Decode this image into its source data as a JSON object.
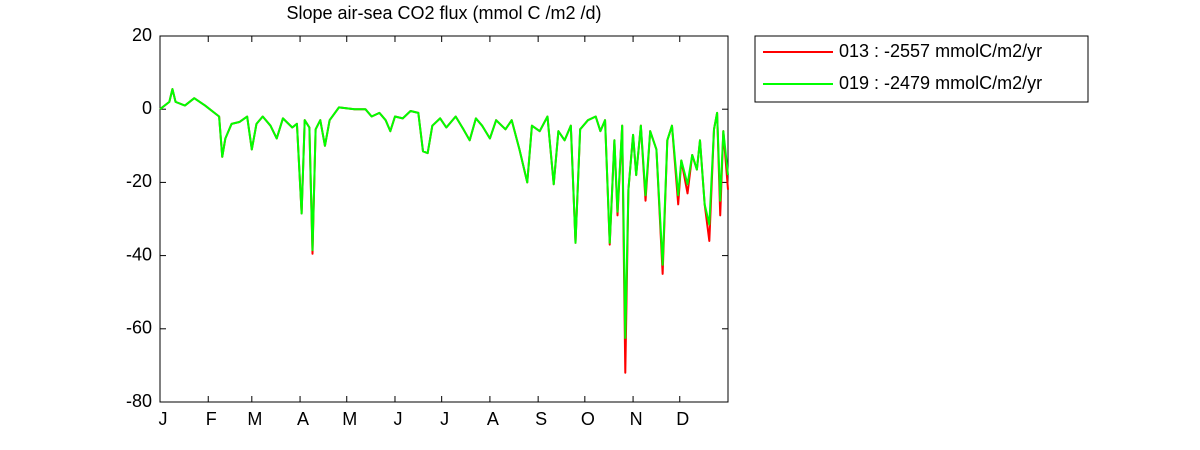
{
  "chart_data": {
    "type": "line",
    "title": "Slope  air-sea CO2 flux (mmol C /m2 /d)",
    "x": [
      1,
      7,
      9,
      11,
      17,
      23,
      30,
      36,
      39,
      41,
      43,
      47,
      52,
      57,
      60,
      63,
      67,
      72,
      76,
      80,
      86,
      89,
      92,
      94,
      97,
      99,
      101,
      104,
      107,
      110,
      116,
      126,
      133,
      137,
      142,
      146,
      149,
      152,
      157,
      162,
      167,
      170,
      173,
      176,
      181,
      185,
      191,
      196,
      200,
      204,
      208,
      213,
      217,
      223,
      227,
      232,
      237,
      240,
      245,
      250,
      254,
      257,
      261,
      265,
      268,
      271,
      276,
      281,
      284,
      287,
      290,
      293,
      295,
      298,
      300,
      302,
      305,
      307,
      310,
      313,
      316,
      320,
      324,
      327,
      330,
      334,
      336,
      340,
      343,
      346,
      348,
      351,
      354,
      357,
      359,
      361,
      363,
      366
    ],
    "series": [
      {
        "name": "013 : -2557 mmolC/m2/yr",
        "color": "#ff0000",
        "values": [
          0,
          2,
          5.5,
          2,
          1,
          3,
          1,
          -1,
          -2,
          -13,
          -8,
          -4,
          -3.5,
          -2,
          -11,
          -4,
          -2,
          -4.5,
          -8,
          -2.5,
          -5,
          -4,
          -28.5,
          -3,
          -5,
          -39.5,
          -5.5,
          -3,
          -10,
          -3,
          0.5,
          0,
          0,
          -2,
          -1,
          -3,
          -6,
          -2,
          -2.5,
          -0.5,
          -1,
          -11.5,
          -12,
          -4.5,
          -2.5,
          -5,
          -2,
          -5.5,
          -8.5,
          -2.5,
          -4.5,
          -8,
          -3,
          -5.5,
          -3,
          -11,
          -20,
          -4.5,
          -6,
          -2,
          -20.5,
          -6,
          -8.5,
          -4.5,
          -36.5,
          -5.5,
          -3,
          -2,
          -6,
          -3,
          -37,
          -8.5,
          -29,
          -4.5,
          -72,
          -22,
          -7,
          -18,
          -4.5,
          -25,
          -6,
          -11,
          -45,
          -8.5,
          -4.5,
          -26,
          -14,
          -23,
          -12.5,
          -16.5,
          -8.5,
          -26,
          -36,
          -5.5,
          -1,
          -29,
          -6,
          -22
        ]
      },
      {
        "name": "019 : -2479 mmolC/m2/yr",
        "color": "#00ff00",
        "values": [
          0,
          2,
          5.5,
          2,
          1,
          3,
          1,
          -1,
          -2,
          -13,
          -8,
          -4,
          -3.5,
          -2,
          -11,
          -4,
          -2,
          -4.5,
          -8,
          -2.5,
          -5,
          -4,
          -28.5,
          -3,
          -5,
          -38.5,
          -5.5,
          -3,
          -10,
          -3,
          0.5,
          0,
          0,
          -2,
          -1,
          -3,
          -6,
          -2,
          -2.5,
          -0.5,
          -1,
          -11.5,
          -12,
          -4.5,
          -2.5,
          -5,
          -2,
          -5.5,
          -8.5,
          -2.5,
          -4.5,
          -8,
          -3,
          -5.5,
          -3,
          -11,
          -20,
          -4.5,
          -6,
          -2,
          -20.5,
          -6,
          -8.5,
          -4.5,
          -36.5,
          -5.5,
          -3,
          -2,
          -6,
          -3,
          -36.5,
          -8.5,
          -28,
          -4.5,
          -62.5,
          -22,
          -7,
          -18,
          -4.5,
          -23.5,
          -6,
          -11,
          -42.5,
          -8.5,
          -4.5,
          -23.5,
          -14,
          -20.5,
          -12.5,
          -16.5,
          -8.5,
          -26,
          -31.5,
          -5.5,
          -1,
          -25,
          -6,
          -18
        ]
      }
    ],
    "xlim": [
      1,
      366
    ],
    "xticks": [
      {
        "value": 1,
        "label": "J"
      },
      {
        "value": 32,
        "label": "F"
      },
      {
        "value": 60,
        "label": "M"
      },
      {
        "value": 91,
        "label": "A"
      },
      {
        "value": 121,
        "label": "M"
      },
      {
        "value": 152,
        "label": "J"
      },
      {
        "value": 182,
        "label": "J"
      },
      {
        "value": 213,
        "label": "A"
      },
      {
        "value": 244,
        "label": "S"
      },
      {
        "value": 274,
        "label": "O"
      },
      {
        "value": 305,
        "label": "N"
      },
      {
        "value": 335,
        "label": "D"
      }
    ],
    "ylim": [
      -80,
      20
    ],
    "yticks": [
      -80,
      -60,
      -40,
      -20,
      0,
      20
    ],
    "legend": "outside-upper-right"
  }
}
